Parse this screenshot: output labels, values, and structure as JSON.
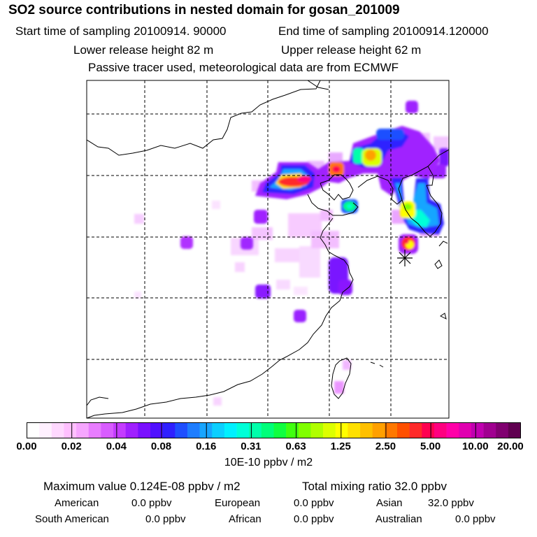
{
  "header": {
    "title": "SO2 source contributions in nested domain for gosan_201009",
    "start_time": "Start time of sampling 20100914. 90000",
    "end_time": "End time of sampling 20100914.120000",
    "lower_release": "Lower release height   82 m",
    "upper_release": "Upper release height   62 m",
    "tracer_note": "Passive tracer used, meteorological data are from ECMWF"
  },
  "colorbar": {
    "ticks": [
      "0.00",
      "0.02",
      "0.04",
      "0.08",
      "0.16",
      "0.31",
      "0.63",
      "1.25",
      "2.50",
      "5.00",
      "10.00",
      "20.00"
    ],
    "unit": "10E-10 ppbv / m2",
    "colors": [
      "#ffffff",
      "#fff0ff",
      "#ffd8ff",
      "#ffbfff",
      "#f6a6ff",
      "#e87dff",
      "#d85cff",
      "#c43cff",
      "#a020ff",
      "#7a10ff",
      "#5010ff",
      "#2f20ff",
      "#1f4fff",
      "#1e7dff",
      "#18a5ff",
      "#0ccfff",
      "#00f0ff",
      "#00ffd8",
      "#00ffaa",
      "#00ff7a",
      "#10ff40",
      "#40ff10",
      "#80ff00",
      "#b0ff00",
      "#dcff00",
      "#ffff00",
      "#ffe000",
      "#ffc000",
      "#ffa000",
      "#ff7800",
      "#ff5000",
      "#ff2a2a",
      "#ff0050",
      "#ff0080",
      "#ff00a8",
      "#e000b0",
      "#c000b0",
      "#a00090",
      "#800070",
      "#600050"
    ]
  },
  "stats": {
    "max_value": "Maximum value  0.124E-08 ppbv / m2",
    "total_mixing": "Total mixing ratio      32.0 ppbv"
  },
  "regions": [
    {
      "name": "American",
      "value": "0.0 ppbv"
    },
    {
      "name": "European",
      "value": "0.0 ppbv"
    },
    {
      "name": "Asian",
      "value": "32.0 ppbv"
    },
    {
      "name": "South American",
      "value": "0.0 ppbv"
    },
    {
      "name": "African",
      "value": "0.0 ppbv"
    },
    {
      "name": "Australian",
      "value": "0.0 ppbv"
    }
  ]
}
